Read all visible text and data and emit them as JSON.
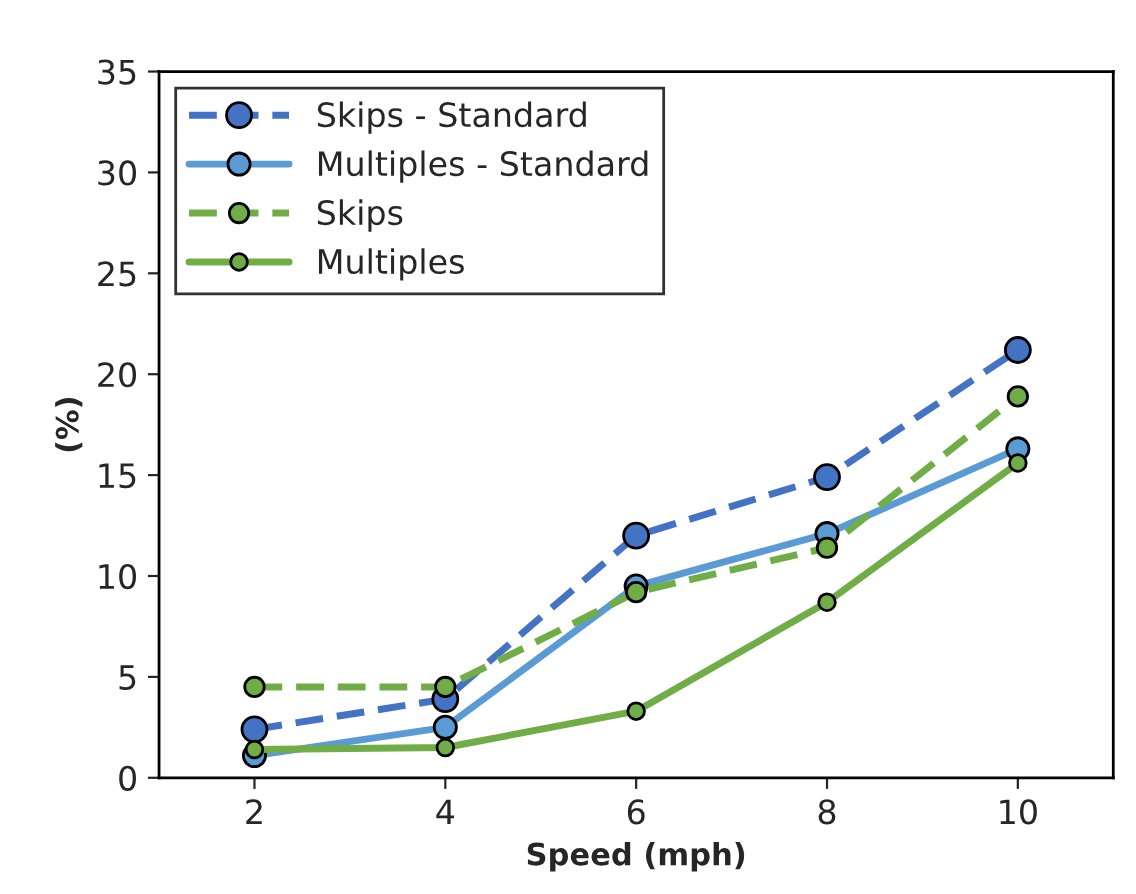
{
  "chart_data": {
    "type": "line",
    "xlabel": "Speed (mph)",
    "ylabel": "(%)",
    "x": [
      2,
      4,
      6,
      8,
      10
    ],
    "xlim": [
      1,
      11
    ],
    "xticks": [
      2,
      4,
      6,
      8,
      10
    ],
    "ylim": [
      0,
      35
    ],
    "yticks": [
      0,
      5,
      10,
      15,
      20,
      25,
      30,
      35
    ],
    "grid": false,
    "legend": "top left",
    "marker": "circle",
    "series": [
      {
        "name": "Skips - Standard",
        "color": "#4472c4",
        "line_style": "dashed",
        "values": [
          2.4,
          3.9,
          12.0,
          14.9,
          21.2
        ]
      },
      {
        "name": "Multiples - Standard",
        "color": "#5b9bd5",
        "line_style": "solid",
        "values": [
          1.1,
          2.5,
          9.5,
          12.1,
          16.3
        ]
      },
      {
        "name": "Skips",
        "color": "#70ad47",
        "line_style": "dashed",
        "values": [
          4.5,
          4.5,
          9.2,
          11.4,
          18.9
        ]
      },
      {
        "name": "Multiples",
        "color": "#70ad47",
        "line_style": "solid",
        "values": [
          1.4,
          1.5,
          3.3,
          8.7,
          15.6
        ]
      }
    ]
  }
}
